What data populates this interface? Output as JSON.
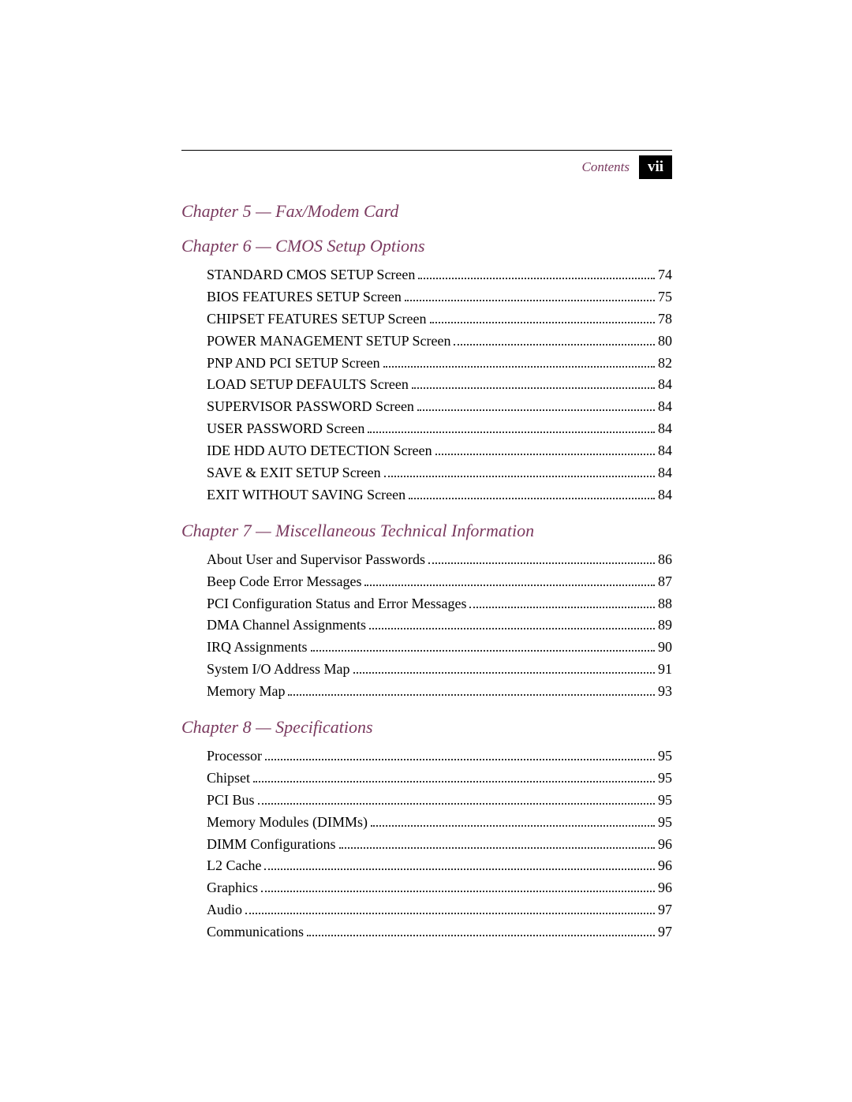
{
  "header": {
    "contents_label": "Contents",
    "page_roman": "vii"
  },
  "chapters": [
    {
      "title": "Chapter 5 — Fax/Modem Card",
      "entries": []
    },
    {
      "title": "Chapter 6 — CMOS Setup Options",
      "entries": [
        {
          "label": "STANDARD CMOS SETUP Screen",
          "page": "74"
        },
        {
          "label": "BIOS FEATURES SETUP Screen",
          "page": "75"
        },
        {
          "label": "CHIPSET FEATURES SETUP Screen",
          "page": "78"
        },
        {
          "label": "POWER MANAGEMENT SETUP Screen",
          "page": "80"
        },
        {
          "label": "PNP AND PCI SETUP Screen",
          "page": "82"
        },
        {
          "label": "LOAD SETUP DEFAULTS Screen",
          "page": "84"
        },
        {
          "label": "SUPERVISOR PASSWORD Screen",
          "page": "84"
        },
        {
          "label": "USER PASSWORD Screen",
          "page": "84"
        },
        {
          "label": "IDE HDD AUTO DETECTION Screen",
          "page": "84"
        },
        {
          "label": "SAVE & EXIT SETUP Screen",
          "page": "84"
        },
        {
          "label": "EXIT WITHOUT SAVING Screen",
          "page": "84"
        }
      ]
    },
    {
      "title": "Chapter 7 — Miscellaneous Technical Information",
      "entries": [
        {
          "label": "About User and Supervisor Passwords",
          "page": "86"
        },
        {
          "label": "Beep Code Error Messages",
          "page": "87"
        },
        {
          "label": "PCI Configuration Status and Error Messages",
          "page": "88"
        },
        {
          "label": "DMA Channel Assignments",
          "page": "89"
        },
        {
          "label": "IRQ Assignments",
          "page": "90"
        },
        {
          "label": "System I/O Address Map",
          "page": "91"
        },
        {
          "label": "Memory Map",
          "page": "93"
        }
      ]
    },
    {
      "title": "Chapter 8 — Specifications",
      "entries": [
        {
          "label": "Processor",
          "page": "95"
        },
        {
          "label": "Chipset",
          "page": "95"
        },
        {
          "label": "PCI Bus",
          "page": "95"
        },
        {
          "label": "Memory Modules (DIMMs)",
          "page": "95"
        },
        {
          "label": "DIMM Configurations",
          "page": "96"
        },
        {
          "label": "L2 Cache",
          "page": "96"
        },
        {
          "label": "Graphics",
          "page": "96"
        },
        {
          "label": "Audio",
          "page": "97"
        },
        {
          "label": "Communications",
          "page": "97"
        }
      ]
    }
  ],
  "colors": {
    "heading": "#7a3a5f",
    "text": "#000000",
    "badge_bg": "#000000",
    "badge_fg": "#ffffff"
  }
}
